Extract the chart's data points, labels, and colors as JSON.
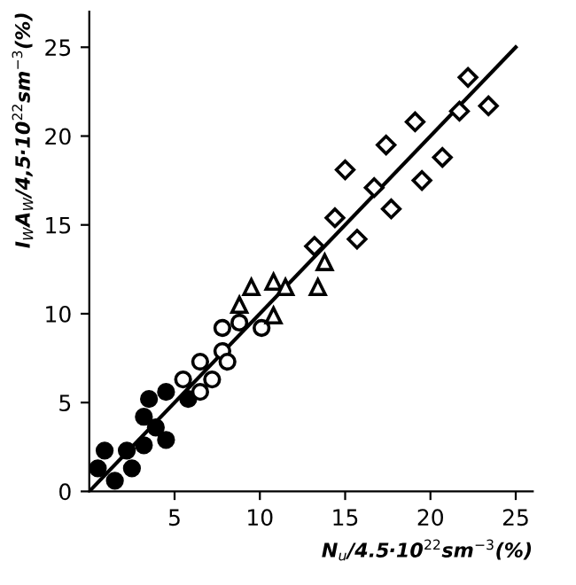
{
  "chart_data": {
    "type": "scatter",
    "xlabel": "N$_{u}$/4.5·10$^{22}$sm$^{−3}$(%)",
    "ylabel": "I$_{W}$A$_{W}$/4,5·10$^{22}$sm$^{−3}$(%)",
    "xlim": [
      0,
      26
    ],
    "ylim": [
      0,
      27
    ],
    "xticks": [
      5,
      10,
      15,
      20,
      25
    ],
    "yticks": [
      0,
      5,
      10,
      15,
      20,
      25
    ],
    "grid": false,
    "series": [
      {
        "marker": "circle",
        "color": "#000000",
        "x": [
          0.5,
          0.9,
          1.5,
          2.2,
          2.5,
          3.2,
          3.2,
          3.5,
          3.9,
          4.5,
          4.5,
          5.8
        ],
        "values": [
          1.3,
          2.3,
          0.6,
          2.3,
          1.3,
          2.6,
          4.2,
          5.2,
          3.6,
          5.6,
          2.9,
          5.2
        ]
      },
      {
        "marker": "circle",
        "color": "#ffffff",
        "x": [
          5.5,
          6.5,
          6.5,
          7.2,
          7.8,
          7.8,
          8.1,
          8.8,
          10.1
        ],
        "values": [
          6.3,
          7.3,
          5.6,
          6.3,
          9.2,
          7.9,
          7.3,
          9.5,
          9.2
        ]
      },
      {
        "marker": "triangle",
        "color": "#ffffff",
        "x": [
          8.8,
          9.5,
          10.8,
          10.8,
          11.5,
          13.4,
          13.8
        ],
        "values": [
          10.5,
          11.5,
          11.8,
          9.9,
          11.5,
          11.5,
          12.9
        ]
      },
      {
        "marker": "diamond",
        "color": "#ffffff",
        "x": [
          13.2,
          14.4,
          15.0,
          15.7,
          16.7,
          17.4,
          17.7,
          19.1,
          19.5,
          20.7,
          21.7,
          22.2,
          23.4
        ],
        "values": [
          13.8,
          15.4,
          18.1,
          14.2,
          17.1,
          19.5,
          15.9,
          20.8,
          17.5,
          18.8,
          21.4,
          23.3,
          21.7
        ]
      },
      {
        "type": "line",
        "marker": "none",
        "line_style": "solid",
        "color": "#000000",
        "x": [
          0,
          25
        ],
        "values": [
          0,
          25
        ]
      }
    ]
  }
}
